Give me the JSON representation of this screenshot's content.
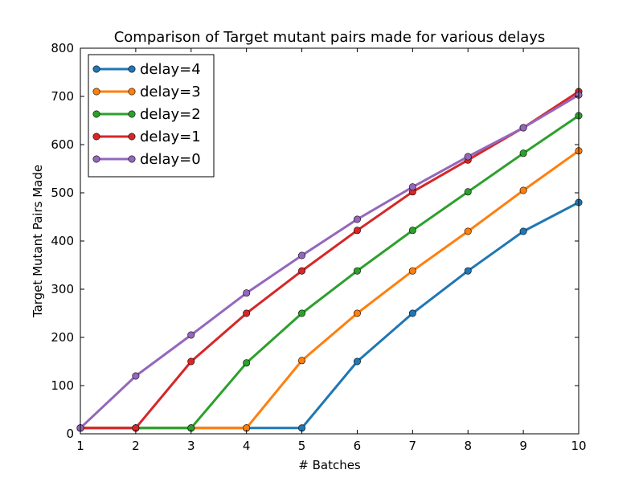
{
  "chart_data": {
    "type": "line",
    "title": "Comparison of Target mutant pairs made for various delays",
    "xlabel": "# Batches",
    "ylabel": "Target Mutant Pairs Made",
    "x": [
      1,
      2,
      3,
      4,
      5,
      6,
      7,
      8,
      9,
      10
    ],
    "xlim": [
      1,
      10
    ],
    "ylim": [
      0,
      800
    ],
    "xticks": [
      "1",
      "2",
      "3",
      "4",
      "5",
      "6",
      "7",
      "8",
      "9",
      "10"
    ],
    "yticks": [
      "0",
      "100",
      "200",
      "300",
      "400",
      "500",
      "600",
      "700",
      "800"
    ],
    "grid": false,
    "legend_position": "top-left",
    "series": [
      {
        "name": "delay=4",
        "color": "#1f77b4",
        "values": [
          12,
          12,
          12,
          12,
          12,
          150,
          250,
          338,
          420,
          480
        ]
      },
      {
        "name": "delay=3",
        "color": "#ff7f0e",
        "values": [
          12,
          12,
          12,
          12,
          152,
          250,
          338,
          420,
          505,
          587
        ]
      },
      {
        "name": "delay=2",
        "color": "#2ca02c",
        "values": [
          12,
          12,
          12,
          147,
          250,
          338,
          422,
          502,
          582,
          660
        ]
      },
      {
        "name": "delay=1",
        "color": "#d62728",
        "values": [
          12,
          12,
          150,
          250,
          338,
          422,
          502,
          568,
          635,
          710
        ]
      },
      {
        "name": "delay=0",
        "color": "#9467bd",
        "values": [
          12,
          120,
          205,
          292,
          370,
          445,
          512,
          575,
          635,
          703
        ]
      }
    ]
  }
}
